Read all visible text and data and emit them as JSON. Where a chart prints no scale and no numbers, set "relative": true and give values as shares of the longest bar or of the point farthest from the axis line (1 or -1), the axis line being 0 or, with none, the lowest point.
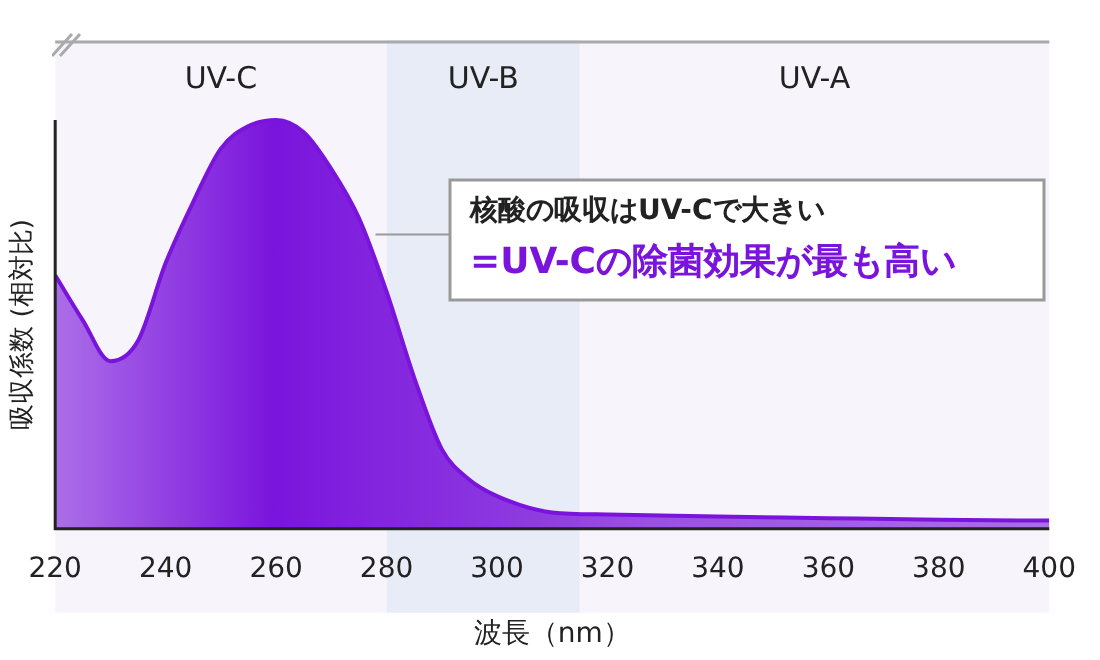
{
  "chart_data": {
    "type": "area",
    "relative": true,
    "xlabel": "波長（nm）",
    "ylabel": "吸収係数 (相対比)",
    "x": [
      220,
      225,
      230,
      235,
      240,
      245,
      250,
      255,
      260,
      265,
      270,
      275,
      280,
      285,
      290,
      295,
      300,
      310,
      320,
      340,
      360,
      380,
      400
    ],
    "series": [
      {
        "color": "#7a14dc",
        "values": [
          0.62,
          0.51,
          0.41,
          0.46,
          0.65,
          0.8,
          0.93,
          0.985,
          1,
          0.97,
          0.88,
          0.76,
          0.58,
          0.37,
          0.195,
          0.12,
          0.08,
          0.04,
          0.035,
          0.03,
          0.026,
          0.022,
          0.02
        ]
      }
    ],
    "xlim": [
      220,
      400
    ],
    "xticks": [
      220,
      240,
      260,
      280,
      300,
      320,
      340,
      360,
      380,
      400
    ],
    "bands": [
      {
        "axis": "x",
        "from": 220,
        "to": 280,
        "label": "UV-C",
        "color": "#f7f5fb"
      },
      {
        "axis": "x",
        "from": 280,
        "to": 315,
        "label": "UV-B",
        "color": "#e8ecf7"
      },
      {
        "axis": "x",
        "from": 315,
        "to": 400,
        "label": "UV-A",
        "color": "#f7f5fb"
      }
    ],
    "annotations": [
      {
        "text": "核酸の吸収はUV-Cで大きい",
        "x": 278,
        "y": 0.72
      },
      "=UV-Cの除菌効果が最も高い"
    ],
    "grid": false,
    "legend": false
  }
}
